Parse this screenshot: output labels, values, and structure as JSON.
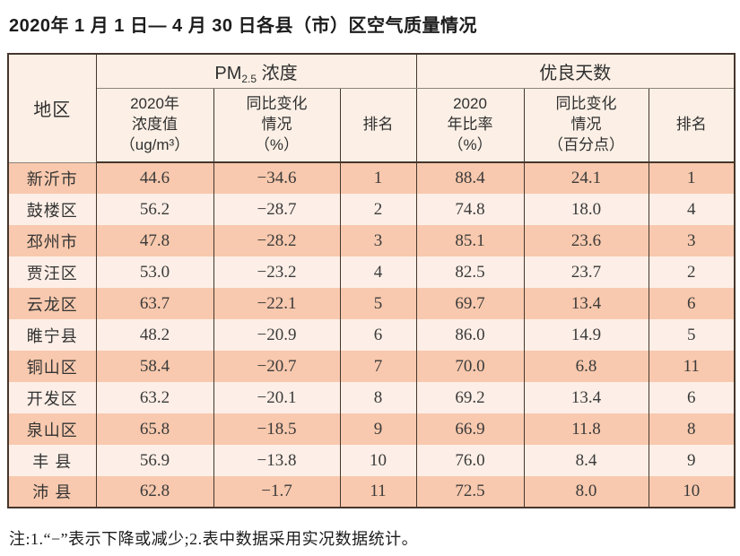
{
  "page_title": "2020年 1 月 1 日— 4 月 30 日各县（市）区空气质量情况",
  "table": {
    "header": {
      "region": "地区",
      "pm25_group_prefix": "PM",
      "pm25_group_sub": "2.5",
      "pm25_group_suffix": " 浓度",
      "good_days_group": "优良天数",
      "pm25_value": "2020年\n浓度值\n（ug/m³）",
      "pm25_change": "同比变化\n情况\n（%）",
      "pm25_rank": "排名",
      "good_rate": "2020\n年比率\n（%）",
      "good_change": "同比变化\n情况\n（百分点）",
      "good_rank": "排名"
    },
    "rows": [
      {
        "region": "新沂市",
        "pm25_value": "44.6",
        "pm25_change": "−34.6",
        "pm25_rank": "1",
        "good_rate": "88.4",
        "good_change": "24.1",
        "good_rank": "1"
      },
      {
        "region": "鼓楼区",
        "pm25_value": "56.2",
        "pm25_change": "−28.7",
        "pm25_rank": "2",
        "good_rate": "74.8",
        "good_change": "18.0",
        "good_rank": "4"
      },
      {
        "region": "邳州市",
        "pm25_value": "47.8",
        "pm25_change": "−28.2",
        "pm25_rank": "3",
        "good_rate": "85.1",
        "good_change": "23.6",
        "good_rank": "3"
      },
      {
        "region": "贾汪区",
        "pm25_value": "53.0",
        "pm25_change": "−23.2",
        "pm25_rank": "4",
        "good_rate": "82.5",
        "good_change": "23.7",
        "good_rank": "2"
      },
      {
        "region": "云龙区",
        "pm25_value": "63.7",
        "pm25_change": "−22.1",
        "pm25_rank": "5",
        "good_rate": "69.7",
        "good_change": "13.4",
        "good_rank": "6"
      },
      {
        "region": "睢宁县",
        "pm25_value": "48.2",
        "pm25_change": "−20.9",
        "pm25_rank": "6",
        "good_rate": "86.0",
        "good_change": "14.9",
        "good_rank": "5"
      },
      {
        "region": "铜山区",
        "pm25_value": "58.4",
        "pm25_change": "−20.7",
        "pm25_rank": "7",
        "good_rate": "70.0",
        "good_change": "6.8",
        "good_rank": "11"
      },
      {
        "region": "开发区",
        "pm25_value": "63.2",
        "pm25_change": "−20.1",
        "pm25_rank": "8",
        "good_rate": "69.2",
        "good_change": "13.4",
        "good_rank": "6"
      },
      {
        "region": "泉山区",
        "pm25_value": "65.8",
        "pm25_change": "−18.5",
        "pm25_rank": "9",
        "good_rate": "66.9",
        "good_change": "11.8",
        "good_rank": "8"
      },
      {
        "region": "丰 县",
        "pm25_value": "56.9",
        "pm25_change": "−13.8",
        "pm25_rank": "10",
        "good_rate": "76.0",
        "good_change": "8.4",
        "good_rank": "9"
      },
      {
        "region": "沛 县",
        "pm25_value": "62.8",
        "pm25_change": "−1.7",
        "pm25_rank": "11",
        "good_rate": "72.5",
        "good_change": "8.0",
        "good_rank": "10"
      }
    ]
  },
  "footnote": "注:1.“−”表示下降或减少;2.表中数据采用实况数据统计。",
  "colors": {
    "row_salmon": "#f8c9ae",
    "row_light": "#fdefe7",
    "header_bg": "#fcf0e6",
    "border_dark": "#46362c"
  }
}
